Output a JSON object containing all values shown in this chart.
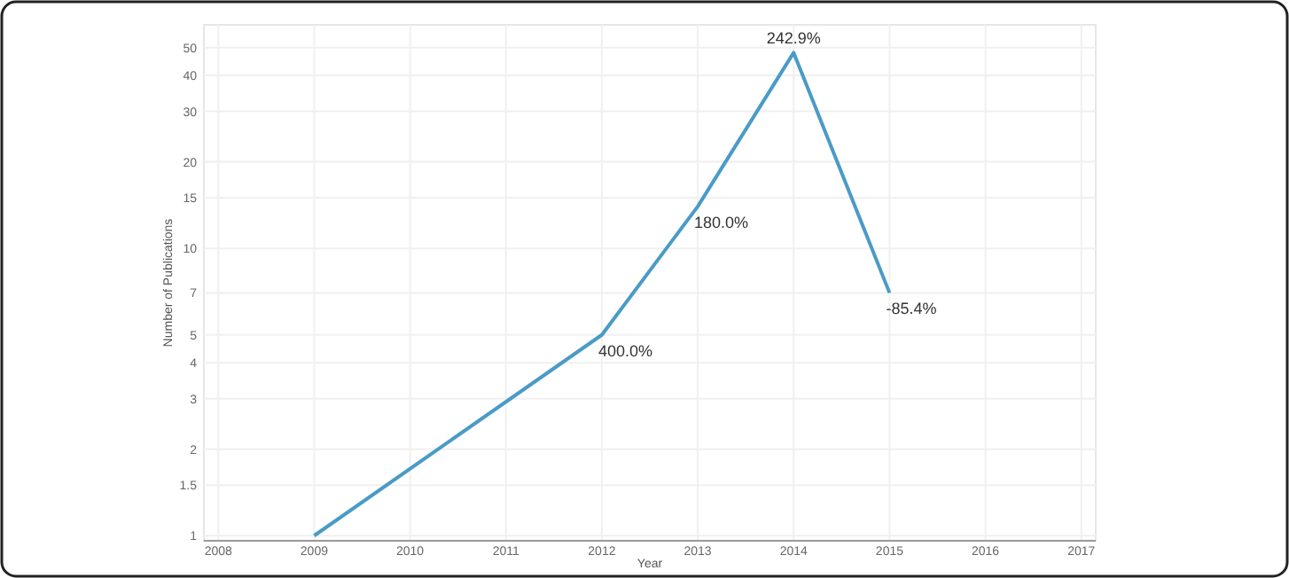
{
  "chart_data": {
    "type": "line",
    "xlabel": "Year",
    "ylabel": "Number of Publications",
    "x": [
      2009,
      2012,
      2013,
      2014,
      2015
    ],
    "series": [
      {
        "color": "#4a9bc7",
        "values": [
          1,
          5,
          14,
          48,
          7
        ]
      }
    ],
    "annotations": [
      {
        "text": "400.0%",
        "x": 2012,
        "y": 5
      },
      {
        "text": "180.0%",
        "x": 2013,
        "y": 14
      },
      {
        "text": "242.9%",
        "x": 2014,
        "y": 48
      },
      {
        "text": "-85.4%",
        "x": 2015,
        "y": 7
      }
    ],
    "xlim": [
      2007.85,
      2017.15
    ],
    "xticks": [
      2008,
      2009,
      2010,
      2011,
      2012,
      2013,
      2014,
      2015,
      2016,
      2017
    ],
    "ylim": [
      0.96,
      60
    ],
    "yticks": [
      1,
      1.5,
      2,
      3,
      4,
      5,
      7,
      10,
      15,
      20,
      30,
      40,
      50
    ],
    "log": "y",
    "grid": true,
    "marker": "none",
    "line_style": "solid"
  }
}
